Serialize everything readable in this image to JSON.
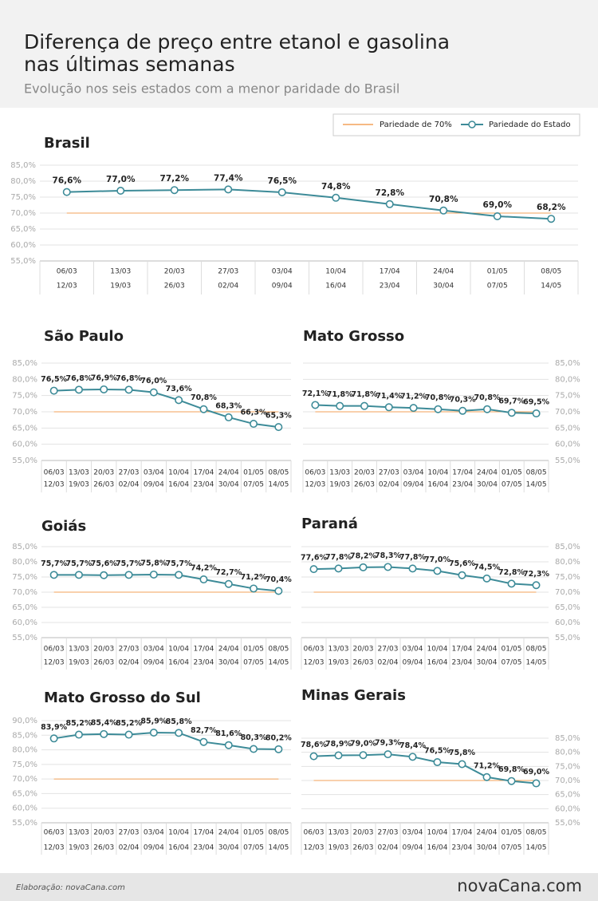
{
  "header": {
    "title": [
      "Diferença de preço entre etanol e gasolina",
      "nas últimas semanas"
    ],
    "subtitle": "Evolução nos seis estados com a menor paridade do Brasil"
  },
  "legend": [
    {
      "name": "Pariedade de 70%",
      "color": "#f3a25a"
    },
    {
      "name": "Pariedade do Estado",
      "color": "#3d8b98"
    }
  ],
  "chart_data": [
    {
      "type": "line",
      "title": "Brasil",
      "y_axis_side": "left",
      "reference_line": 70,
      "categories": [
        [
          "06/03",
          "12/03"
        ],
        [
          "13/03",
          "19/03"
        ],
        [
          "20/03",
          "26/03"
        ],
        [
          "27/03",
          "02/04"
        ],
        [
          "03/04",
          "09/04"
        ],
        [
          "10/04",
          "16/04"
        ],
        [
          "17/04",
          "23/04"
        ],
        [
          "24/04",
          "30/04"
        ],
        [
          "01/05",
          "07/05"
        ],
        [
          "08/05",
          "14/05"
        ]
      ],
      "values": [
        76.6,
        77.0,
        77.2,
        77.4,
        76.5,
        74.8,
        72.8,
        70.8,
        69.0,
        68.2
      ],
      "value_labels": [
        "76,6%",
        "77,0%",
        "77,2%",
        "77,4%",
        "76,5%",
        "74,8%",
        "72,8%",
        "70,8%",
        "69,0%",
        "68,2%"
      ],
      "ylim": [
        55,
        85
      ],
      "yticks": [
        {
          "value": 55,
          "label": "55,0%"
        },
        {
          "value": 60,
          "label": "60,0%"
        },
        {
          "value": 65,
          "label": "65,0%"
        },
        {
          "value": 70,
          "label": "70,0%"
        },
        {
          "value": 75,
          "label": "75,0%"
        },
        {
          "value": 80,
          "label": "80,0%"
        },
        {
          "value": 85,
          "label": "85,0%"
        }
      ]
    },
    {
      "type": "line",
      "title": "São Paulo",
      "y_axis_side": "left",
      "reference_line": 70,
      "categories": [
        [
          "06/03",
          "12/03"
        ],
        [
          "13/03",
          "19/03"
        ],
        [
          "20/03",
          "26/03"
        ],
        [
          "27/03",
          "02/04"
        ],
        [
          "03/04",
          "09/04"
        ],
        [
          "10/04",
          "16/04"
        ],
        [
          "17/04",
          "23/04"
        ],
        [
          "24/04",
          "30/04"
        ],
        [
          "01/05",
          "07/05"
        ],
        [
          "08/05",
          "14/05"
        ]
      ],
      "values": [
        76.5,
        76.8,
        76.9,
        76.8,
        76.0,
        73.6,
        70.8,
        68.3,
        66.3,
        65.3
      ],
      "value_labels": [
        "76,5%",
        "76,8%",
        "76,9%",
        "76,8%",
        "76,0%",
        "73,6%",
        "70,8%",
        "68,3%",
        "66,3%",
        "65,3%"
      ],
      "ylim": [
        55,
        85
      ],
      "yticks": [
        {
          "value": 55,
          "label": "55,0%"
        },
        {
          "value": 60,
          "label": "60,0%"
        },
        {
          "value": 65,
          "label": "65,0%"
        },
        {
          "value": 70,
          "label": "70,0%"
        },
        {
          "value": 75,
          "label": "75,0%"
        },
        {
          "value": 80,
          "label": "80,0%"
        },
        {
          "value": 85,
          "label": "85,0%"
        }
      ]
    },
    {
      "type": "line",
      "title": "Mato Grosso",
      "y_axis_side": "right",
      "reference_line": 70,
      "categories": [
        [
          "06/03",
          "12/03"
        ],
        [
          "13/03",
          "19/03"
        ],
        [
          "20/03",
          "26/03"
        ],
        [
          "27/03",
          "02/04"
        ],
        [
          "03/04",
          "09/04"
        ],
        [
          "10/04",
          "16/04"
        ],
        [
          "17/04",
          "23/04"
        ],
        [
          "24/04",
          "30/04"
        ],
        [
          "01/05",
          "07/05"
        ],
        [
          "08/05",
          "14/05"
        ]
      ],
      "values": [
        72.1,
        71.8,
        71.8,
        71.4,
        71.2,
        70.8,
        70.3,
        70.8,
        69.7,
        69.5
      ],
      "value_labels": [
        "72,1%",
        "71,8%",
        "71,8%",
        "71,4%",
        "71,2%",
        "70,8%",
        "70,3%",
        "70,8%",
        "69,7%",
        "69,5%"
      ],
      "ylim": [
        55,
        85
      ],
      "yticks": [
        {
          "value": 55,
          "label": "55,0%"
        },
        {
          "value": 60,
          "label": "60,0%"
        },
        {
          "value": 65,
          "label": "65,0%"
        },
        {
          "value": 70,
          "label": "70,0%"
        },
        {
          "value": 75,
          "label": "75,0%"
        },
        {
          "value": 80,
          "label": "80,0%"
        },
        {
          "value": 85,
          "label": "85,0%"
        }
      ]
    },
    {
      "type": "line",
      "title": "Goiás",
      "y_axis_side": "left",
      "reference_line": 70,
      "categories": [
        [
          "06/03",
          "12/03"
        ],
        [
          "13/03",
          "19/03"
        ],
        [
          "20/03",
          "26/03"
        ],
        [
          "27/03",
          "02/04"
        ],
        [
          "03/04",
          "09/04"
        ],
        [
          "10/04",
          "16/04"
        ],
        [
          "17/04",
          "23/04"
        ],
        [
          "24/04",
          "30/04"
        ],
        [
          "01/05",
          "07/05"
        ],
        [
          "08/05",
          "14/05"
        ]
      ],
      "values": [
        75.7,
        75.7,
        75.6,
        75.7,
        75.8,
        75.7,
        74.2,
        72.7,
        71.2,
        70.4
      ],
      "value_labels": [
        "75,7%",
        "75,7%",
        "75,6%",
        "75,7%",
        "75,8%",
        "75,7%",
        "74,2%",
        "72,7%",
        "71,2%",
        "70,4%"
      ],
      "ylim": [
        55,
        85
      ],
      "yticks": [
        {
          "value": 55,
          "label": "55,0%"
        },
        {
          "value": 60,
          "label": "60,0%"
        },
        {
          "value": 65,
          "label": "65,0%"
        },
        {
          "value": 70,
          "label": "70,0%"
        },
        {
          "value": 75,
          "label": "75,0%"
        },
        {
          "value": 80,
          "label": "80,0%"
        },
        {
          "value": 85,
          "label": "85,0%"
        }
      ]
    },
    {
      "type": "line",
      "title": "Paraná",
      "y_axis_side": "right",
      "reference_line": 70,
      "categories": [
        [
          "06/03",
          "12/03"
        ],
        [
          "13/03",
          "19/03"
        ],
        [
          "20/03",
          "26/03"
        ],
        [
          "27/03",
          "02/04"
        ],
        [
          "03/04",
          "09/04"
        ],
        [
          "10/04",
          "16/04"
        ],
        [
          "17/04",
          "23/04"
        ],
        [
          "24/04",
          "30/04"
        ],
        [
          "01/05",
          "07/05"
        ],
        [
          "08/05",
          "14/05"
        ]
      ],
      "values": [
        77.6,
        77.8,
        78.2,
        78.3,
        77.8,
        77.0,
        75.6,
        74.5,
        72.8,
        72.3
      ],
      "value_labels": [
        "77,6%",
        "77,8%",
        "78,2%",
        "78,3%",
        "77,8%",
        "77,0%",
        "75,6%",
        "74,5%",
        "72,8%",
        "72,3%"
      ],
      "ylim": [
        55,
        85
      ],
      "yticks": [
        {
          "value": 55,
          "label": "55,0%"
        },
        {
          "value": 60,
          "label": "60,0%"
        },
        {
          "value": 65,
          "label": "65,0%"
        },
        {
          "value": 70,
          "label": "70,0%"
        },
        {
          "value": 75,
          "label": "75,0%"
        },
        {
          "value": 80,
          "label": "80,0%"
        },
        {
          "value": 85,
          "label": "85,0%"
        }
      ]
    },
    {
      "type": "line",
      "title": "Mato Grosso do Sul",
      "y_axis_side": "left",
      "reference_line": 70,
      "categories": [
        [
          "06/03",
          "12/03"
        ],
        [
          "13/03",
          "19/03"
        ],
        [
          "20/03",
          "26/03"
        ],
        [
          "27/03",
          "02/04"
        ],
        [
          "03/04",
          "09/04"
        ],
        [
          "10/04",
          "16/04"
        ],
        [
          "17/04",
          "23/04"
        ],
        [
          "24/04",
          "30/04"
        ],
        [
          "01/05",
          "07/05"
        ],
        [
          "08/05",
          "14/05"
        ]
      ],
      "values": [
        83.9,
        85.2,
        85.4,
        85.2,
        85.9,
        85.8,
        82.7,
        81.6,
        80.3,
        80.2
      ],
      "value_labels": [
        "83,9%",
        "85,2%",
        "85,4%",
        "85,2%",
        "85,9%",
        "85,8%",
        "82,7%",
        "81,6%",
        "80,3%",
        "80,2%"
      ],
      "ylim": [
        55,
        90
      ],
      "yticks": [
        {
          "value": 55,
          "label": "55,0%"
        },
        {
          "value": 60,
          "label": "60,0%"
        },
        {
          "value": 65,
          "label": "65,0%"
        },
        {
          "value": 70,
          "label": "70,0%"
        },
        {
          "value": 75,
          "label": "75,0%"
        },
        {
          "value": 80,
          "label": "80,0%"
        },
        {
          "value": 85,
          "label": "85,0%"
        },
        {
          "value": 90,
          "label": "90,0%"
        }
      ]
    },
    {
      "type": "line",
      "title": "Minas Gerais",
      "y_axis_side": "right",
      "reference_line": 70,
      "categories": [
        [
          "06/03",
          "12/03"
        ],
        [
          "13/03",
          "19/03"
        ],
        [
          "20/03",
          "26/03"
        ],
        [
          "27/03",
          "02/04"
        ],
        [
          "03/04",
          "09/04"
        ],
        [
          "10/04",
          "16/04"
        ],
        [
          "17/04",
          "23/04"
        ],
        [
          "24/04",
          "30/04"
        ],
        [
          "01/05",
          "07/05"
        ],
        [
          "08/05",
          "14/05"
        ]
      ],
      "values": [
        78.6,
        78.9,
        79.0,
        79.3,
        78.4,
        76.5,
        75.8,
        71.2,
        69.8,
        69.0
      ],
      "value_labels": [
        "78,6%",
        "78,9%",
        "79,0%",
        "79,3%",
        "78,4%",
        "76,5%",
        "75,8%",
        "71,2%",
        "69,8%",
        "69,0%"
      ],
      "ylim": [
        55,
        85
      ],
      "yticks": [
        {
          "value": 55,
          "label": "55,0%"
        },
        {
          "value": 60,
          "label": "60,0%"
        },
        {
          "value": 65,
          "label": "65,0%"
        },
        {
          "value": 70,
          "label": "70,0%"
        },
        {
          "value": 75,
          "label": "75,0%"
        },
        {
          "value": 80,
          "label": "80,0%"
        },
        {
          "value": 85,
          "label": "85,0%"
        }
      ]
    }
  ],
  "footer": {
    "credit": "Elaboração: novaCana.com",
    "logo": "novaCana.com"
  }
}
